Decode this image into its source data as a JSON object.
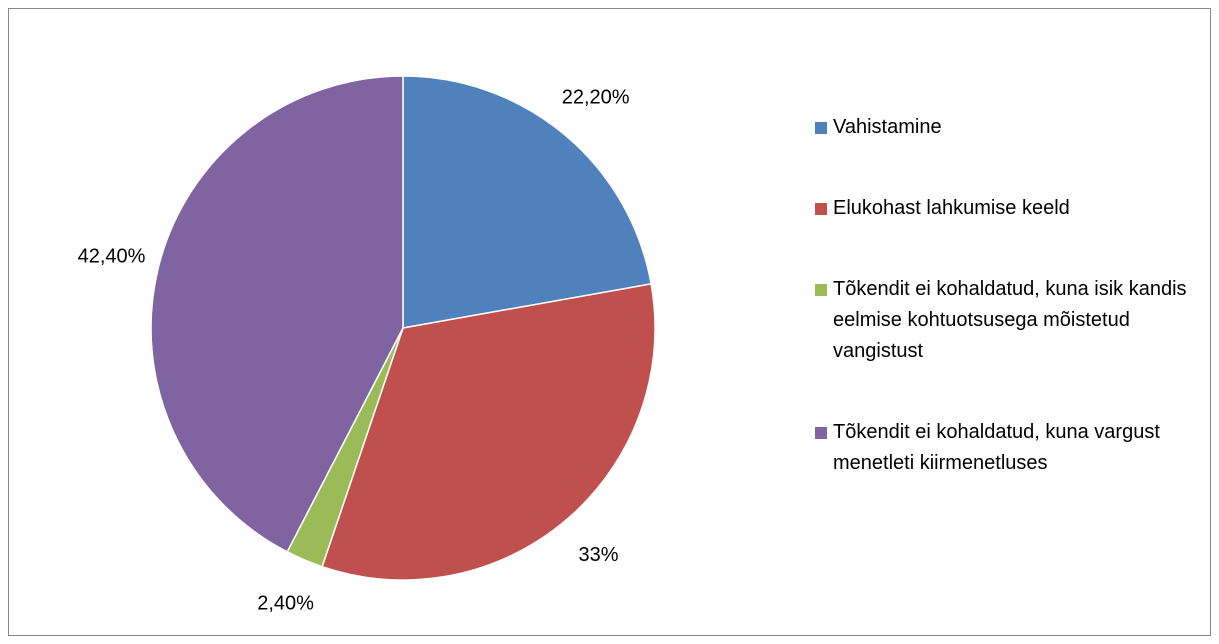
{
  "chart_data": {
    "type": "pie",
    "categories": [
      "Vahistamine",
      "Elukohast lahkumise keeld",
      "Tõkendit ei kohaldatud, kuna isik kandis eelmise kohtuotsusega mõistetud vangistust",
      "Tõkendit ei kohaldatud, kuna vargust menetleti kiirmenetluses"
    ],
    "values": [
      22.2,
      33,
      2.4,
      42.4
    ],
    "value_labels": [
      "22,20%",
      "33%",
      "2,40%",
      "42,40%"
    ],
    "colors": [
      "#4f81bd",
      "#c0504d",
      "#9bbb59",
      "#8064a2"
    ],
    "legend": "right"
  }
}
